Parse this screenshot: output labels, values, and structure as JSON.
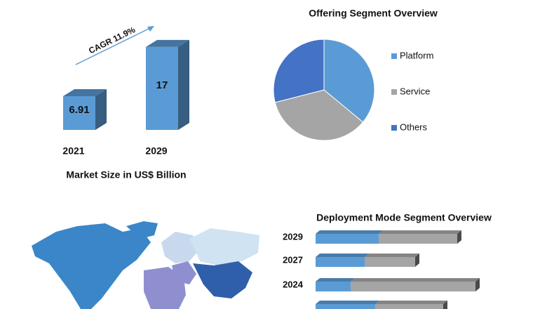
{
  "chart_data": [
    {
      "type": "bar",
      "title": "Market Size in US$ Billion",
      "annotation": "CAGR 11.9%",
      "categories": [
        "2021",
        "2029"
      ],
      "values": [
        6.91,
        17
      ],
      "color": "#5b9bd5",
      "ylim": [
        0,
        20
      ]
    },
    {
      "type": "pie",
      "title": "Offering Segment Overview",
      "categories": [
        "Platform",
        "Service",
        "Others"
      ],
      "values": [
        36,
        35,
        29
      ],
      "colors": [
        "#5b9bd5",
        "#a5a5a5",
        "#4472c4"
      ],
      "legend": "right"
    },
    {
      "type": "bar",
      "orientation": "horizontal",
      "stacked": true,
      "title": "Deployment Mode  Segment Overview",
      "categories": [
        "2029",
        "2027",
        "2024",
        null
      ],
      "series": [
        {
          "color": "#5b9bd5",
          "values": [
            90,
            70,
            50,
            85
          ]
        },
        {
          "color": "#a5a5a5",
          "values": [
            112,
            72,
            178,
            97
          ]
        }
      ],
      "xlim": [
        0,
        250
      ]
    }
  ]
}
